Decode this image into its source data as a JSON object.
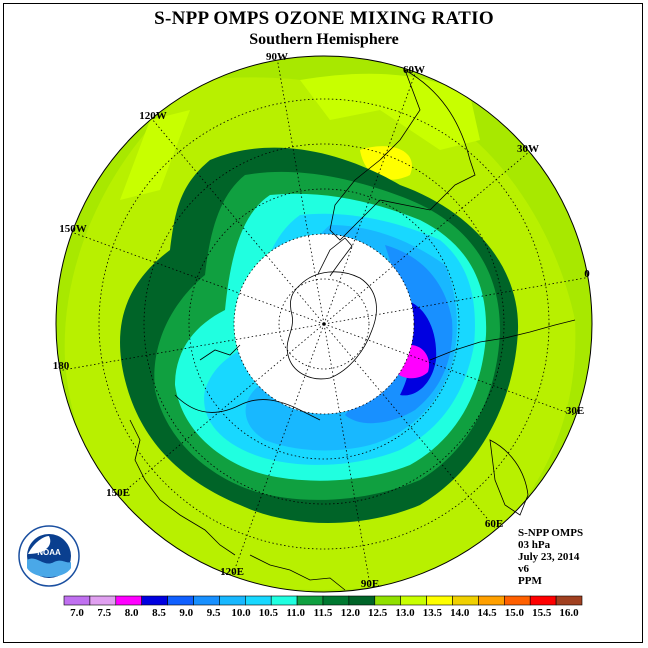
{
  "title": "S-NPP OMPS OZONE MIXING RATIO",
  "subtitle": "Southern Hemisphere",
  "longitude_labels": [
    {
      "text": "90W",
      "key": "lon-90w"
    },
    {
      "text": "60W",
      "key": "lon-60w"
    },
    {
      "text": "120W",
      "key": "lon-120w"
    },
    {
      "text": "30W",
      "key": "lon-30w"
    },
    {
      "text": "150W",
      "key": "lon-150w"
    },
    {
      "text": "0",
      "key": "lon-0"
    },
    {
      "text": "180",
      "key": "lon-180"
    },
    {
      "text": "30E",
      "key": "lon-30e"
    },
    {
      "text": "150E",
      "key": "lon-150e"
    },
    {
      "text": "60E",
      "key": "lon-60e"
    },
    {
      "text": "120E",
      "key": "lon-120e"
    },
    {
      "text": "90E",
      "key": "lon-90e"
    }
  ],
  "info": {
    "instrument": "S-NPP OMPS",
    "level": "03 hPa",
    "date": "July 23, 2014",
    "version": "v6",
    "units": "PPM"
  },
  "colorbar": {
    "ticks": [
      "7.0",
      "7.5",
      "8.0",
      "8.5",
      "9.0",
      "9.5",
      "10.0",
      "10.5",
      "11.0",
      "11.5",
      "12.0",
      "12.5",
      "13.0",
      "13.5",
      "14.0",
      "14.5",
      "15.0",
      "15.5",
      "16.0"
    ],
    "colors": [
      "#c070f0",
      "#e0a0f0",
      "#ff00ff",
      "#0000e0",
      "#1060ff",
      "#1890ff",
      "#18b8ff",
      "#18d8ff",
      "#20ffe0",
      "#10a040",
      "#007830",
      "#006428",
      "#90e000",
      "#c8ff00",
      "#ffff00",
      "#f0d000",
      "#ffa000",
      "#ff6000",
      "#ff0000",
      "#a04020"
    ]
  },
  "logo_text": "NOAA"
}
